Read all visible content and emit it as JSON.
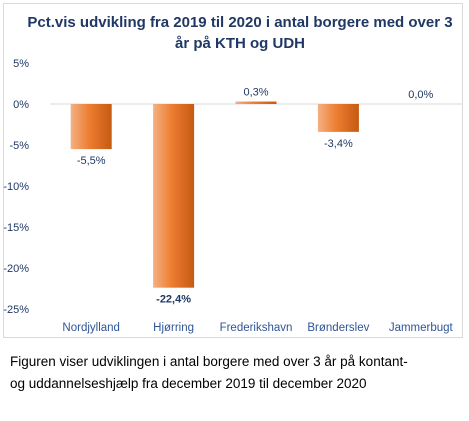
{
  "chart_data": {
    "type": "bar",
    "title": "Pct.vis udvikling fra 2019 til 2020 i antal borgere med over 3 år på KTH og UDH",
    "categories": [
      "Nordjylland",
      "Hjørring",
      "Frederikshavn",
      "Brønderslev",
      "Jammerbugt"
    ],
    "values": [
      -5.5,
      -22.4,
      0.3,
      -3.4,
      0.0
    ],
    "data_labels": [
      "-5,5%",
      "-22,4%",
      "0,3%",
      "-3,4%",
      "0,0%"
    ],
    "bold_labels": [
      false,
      true,
      false,
      false,
      false
    ],
    "ylim": [
      -25,
      5
    ],
    "yticks": [
      5,
      0,
      -5,
      -10,
      -15,
      -20,
      -25
    ],
    "ytick_labels": [
      "5%",
      "0%",
      "-5%",
      "-10%",
      "-15%",
      "-20%",
      "-25%"
    ],
    "grid": false,
    "legend": "none",
    "colors": {
      "bar_top": "#f4b183",
      "bar_mid": "#ed7d31",
      "bar_bottom": "#c55a11",
      "title": "#1f3864",
      "axis_text": "#1f3864",
      "category_text": "#2f5597",
      "axis_line": "#d9d9d9"
    }
  },
  "caption": {
    "line1": "Figuren viser udviklingen i antal borgere med over 3 år på kontant-",
    "line2": "og uddannelseshjælp fra december 2019 til december 2020"
  }
}
